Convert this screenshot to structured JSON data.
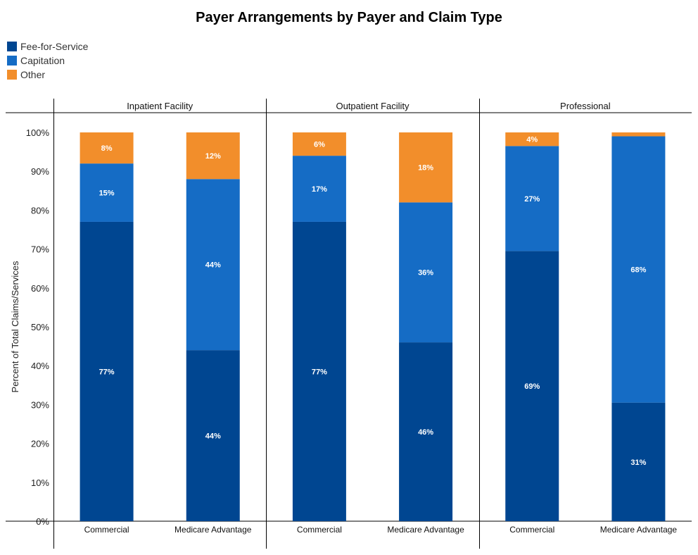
{
  "chart_data": {
    "type": "bar",
    "stacked": true,
    "title": "Payer Arrangements by Payer and Claim Type",
    "ylabel": "Percent of Total Claims/Services",
    "ylim": [
      0,
      100
    ],
    "y_ticks": [
      "0%",
      "10%",
      "20%",
      "30%",
      "40%",
      "50%",
      "60%",
      "70%",
      "80%",
      "90%",
      "100%"
    ],
    "legend_position": "top-left",
    "panels": [
      {
        "name": "Inpatient Facility",
        "categories": [
          "Commercial",
          "Medicare Advantage"
        ],
        "series": [
          {
            "name": "Fee-for-Service",
            "values": [
              77,
              44
            ],
            "labels": [
              "77%",
              "44%"
            ]
          },
          {
            "name": "Capitation",
            "values": [
              15,
              44
            ],
            "labels": [
              "15%",
              "44%"
            ]
          },
          {
            "name": "Other",
            "values": [
              8,
              12
            ],
            "labels": [
              "8%",
              "12%"
            ]
          }
        ]
      },
      {
        "name": "Outpatient Facility",
        "categories": [
          "Commercial",
          "Medicare Advantage"
        ],
        "series": [
          {
            "name": "Fee-for-Service",
            "values": [
              77,
              46
            ],
            "labels": [
              "77%",
              "46%"
            ]
          },
          {
            "name": "Capitation",
            "values": [
              17,
              36
            ],
            "labels": [
              "17%",
              "36%"
            ]
          },
          {
            "name": "Other",
            "values": [
              6,
              18
            ],
            "labels": [
              "6%",
              "18%"
            ]
          }
        ]
      },
      {
        "name": "Professional",
        "categories": [
          "Commercial",
          "Medicare Advantage"
        ],
        "series": [
          {
            "name": "Fee-for-Service",
            "values": [
              69.5,
              30.5
            ],
            "labels": [
              "69%",
              "31%"
            ]
          },
          {
            "name": "Capitation",
            "values": [
              27,
              68.5
            ],
            "labels": [
              "27%",
              "68%"
            ]
          },
          {
            "name": "Other",
            "values": [
              3.5,
              1
            ],
            "labels": [
              "4%",
              ""
            ]
          }
        ]
      }
    ],
    "legend": [
      {
        "name": "Fee-for-Service",
        "color": "#004691"
      },
      {
        "name": "Capitation",
        "color": "#156cc5"
      },
      {
        "name": "Other",
        "color": "#f28e2b"
      }
    ]
  }
}
